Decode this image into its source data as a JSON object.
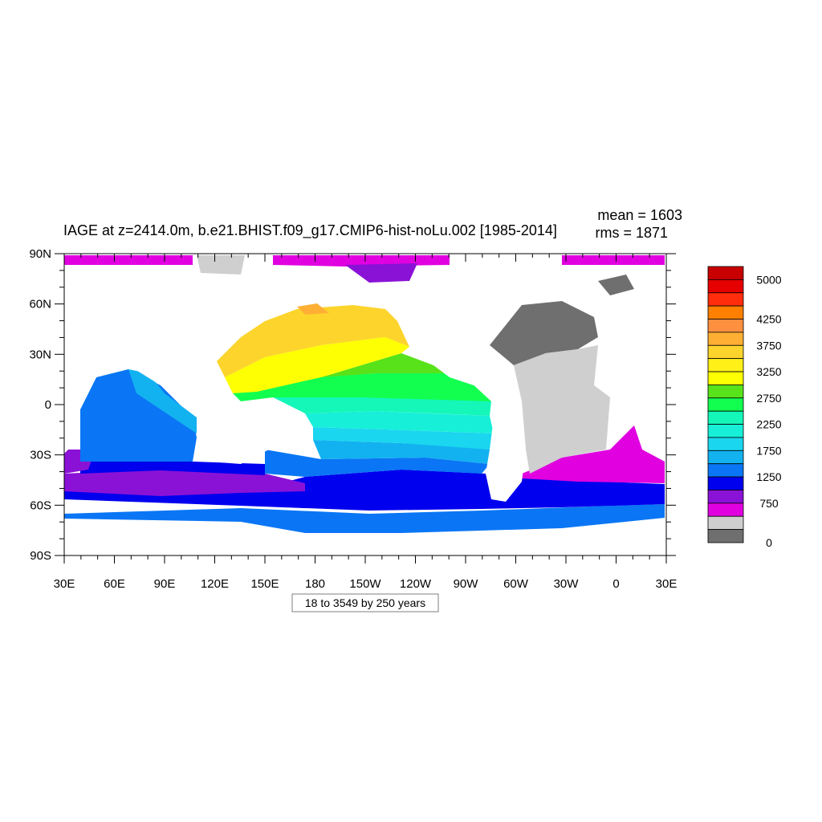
{
  "title": "IAGE at z=2414.0m, b.e21.BHIST.f09_g17.CMIP6-hist-noLu.002 [1985-2014]",
  "stats": {
    "mean": "mean = 1603",
    "rms": "rms = 1871"
  },
  "footer_label": "18 to 3549 by 250 years",
  "chart_data": {
    "type": "heatmap",
    "variable": "IAGE",
    "depth": "z=2414.0m",
    "units": "years",
    "lon_ticks": [
      "30E",
      "60E",
      "90E",
      "120E",
      "150E",
      "180",
      "150W",
      "120W",
      "90W",
      "60W",
      "30W",
      "0",
      "30E"
    ],
    "lat_ticks": [
      "90N",
      "60N",
      "30N",
      "0",
      "30S",
      "60S",
      "90S"
    ],
    "xlim": [
      30,
      390
    ],
    "ylim": [
      -90,
      90
    ],
    "colorbar": {
      "levels": [
        0,
        250,
        500,
        750,
        1000,
        1250,
        1500,
        1750,
        2000,
        2250,
        2500,
        2750,
        3000,
        3250,
        3500,
        3750,
        4000,
        4250,
        4500,
        4750,
        5000
      ],
      "labels": [
        "0",
        "750",
        "1250",
        "1750",
        "2250",
        "2750",
        "3250",
        "3750",
        "4250",
        "5000"
      ],
      "colors": [
        "#6f6f6f",
        "#cfcfcf",
        "#e000e0",
        "#8a12d6",
        "#0000ee",
        "#0a76f5",
        "#12b2f0",
        "#1ad6ee",
        "#18efd8",
        "#14f7b8",
        "#12ff50",
        "#58e21a",
        "#fdff02",
        "#fff018",
        "#fdd42c",
        "#ffb034",
        "#ff9040",
        "#ff7f00",
        "#ff2d0c",
        "#e60000",
        "#c80000"
      ]
    },
    "contour_range": {
      "min": 18,
      "max": 3549,
      "interval": 250
    },
    "mean": 1603,
    "rms": 1871
  }
}
